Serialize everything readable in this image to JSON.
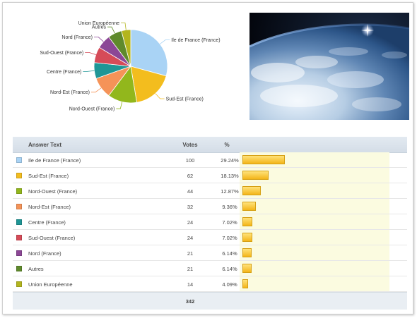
{
  "table": {
    "headers": {
      "answer": "Answer Text",
      "votes": "Votes",
      "percent": "%"
    },
    "rows": [
      {
        "label": "Ile de France (France)",
        "votes": "100",
        "percent": "29.24%",
        "color": "#a9d3f5",
        "fraction": 0.2924
      },
      {
        "label": "Sud-Est (France)",
        "votes": "62",
        "percent": "18.13%",
        "color": "#f3bd1e",
        "fraction": 0.1813
      },
      {
        "label": "Nord-Ouest (France)",
        "votes": "44",
        "percent": "12.87%",
        "color": "#92b71c",
        "fraction": 0.1287
      },
      {
        "label": "Nord-Est (France)",
        "votes": "32",
        "percent": "9.36%",
        "color": "#f59358",
        "fraction": 0.0936
      },
      {
        "label": "Centre (France)",
        "votes": "24",
        "percent": "7.02%",
        "color": "#1f9696",
        "fraction": 0.0702
      },
      {
        "label": "Sud-Ouest (France)",
        "votes": "24",
        "percent": "7.02%",
        "color": "#d64b58",
        "fraction": 0.0702
      },
      {
        "label": "Nord (France)",
        "votes": "21",
        "percent": "6.14%",
        "color": "#8c4796",
        "fraction": 0.0614
      },
      {
        "label": "Autres",
        "votes": "21",
        "percent": "6.14%",
        "color": "#5f8a2c",
        "fraction": 0.0614
      },
      {
        "label": "Union Européenne",
        "votes": "14",
        "percent": "4.09%",
        "color": "#b3b51e",
        "fraction": 0.0409
      }
    ],
    "total": "342"
  },
  "chart_data": {
    "type": "pie",
    "categories": [
      "Ile de France (France)",
      "Sud-Est (France)",
      "Nord-Ouest (France)",
      "Nord-Est (France)",
      "Centre (France)",
      "Sud-Ouest (France)",
      "Nord (France)",
      "Autres",
      "Union Européenne"
    ],
    "values": [
      100,
      62,
      44,
      32,
      24,
      24,
      21,
      21,
      14
    ],
    "colors": [
      "#a9d3f5",
      "#f3bd1e",
      "#92b71c",
      "#f59358",
      "#1f9696",
      "#d64b58",
      "#8c4796",
      "#5f8a2c",
      "#b3b51e"
    ],
    "title": ""
  }
}
